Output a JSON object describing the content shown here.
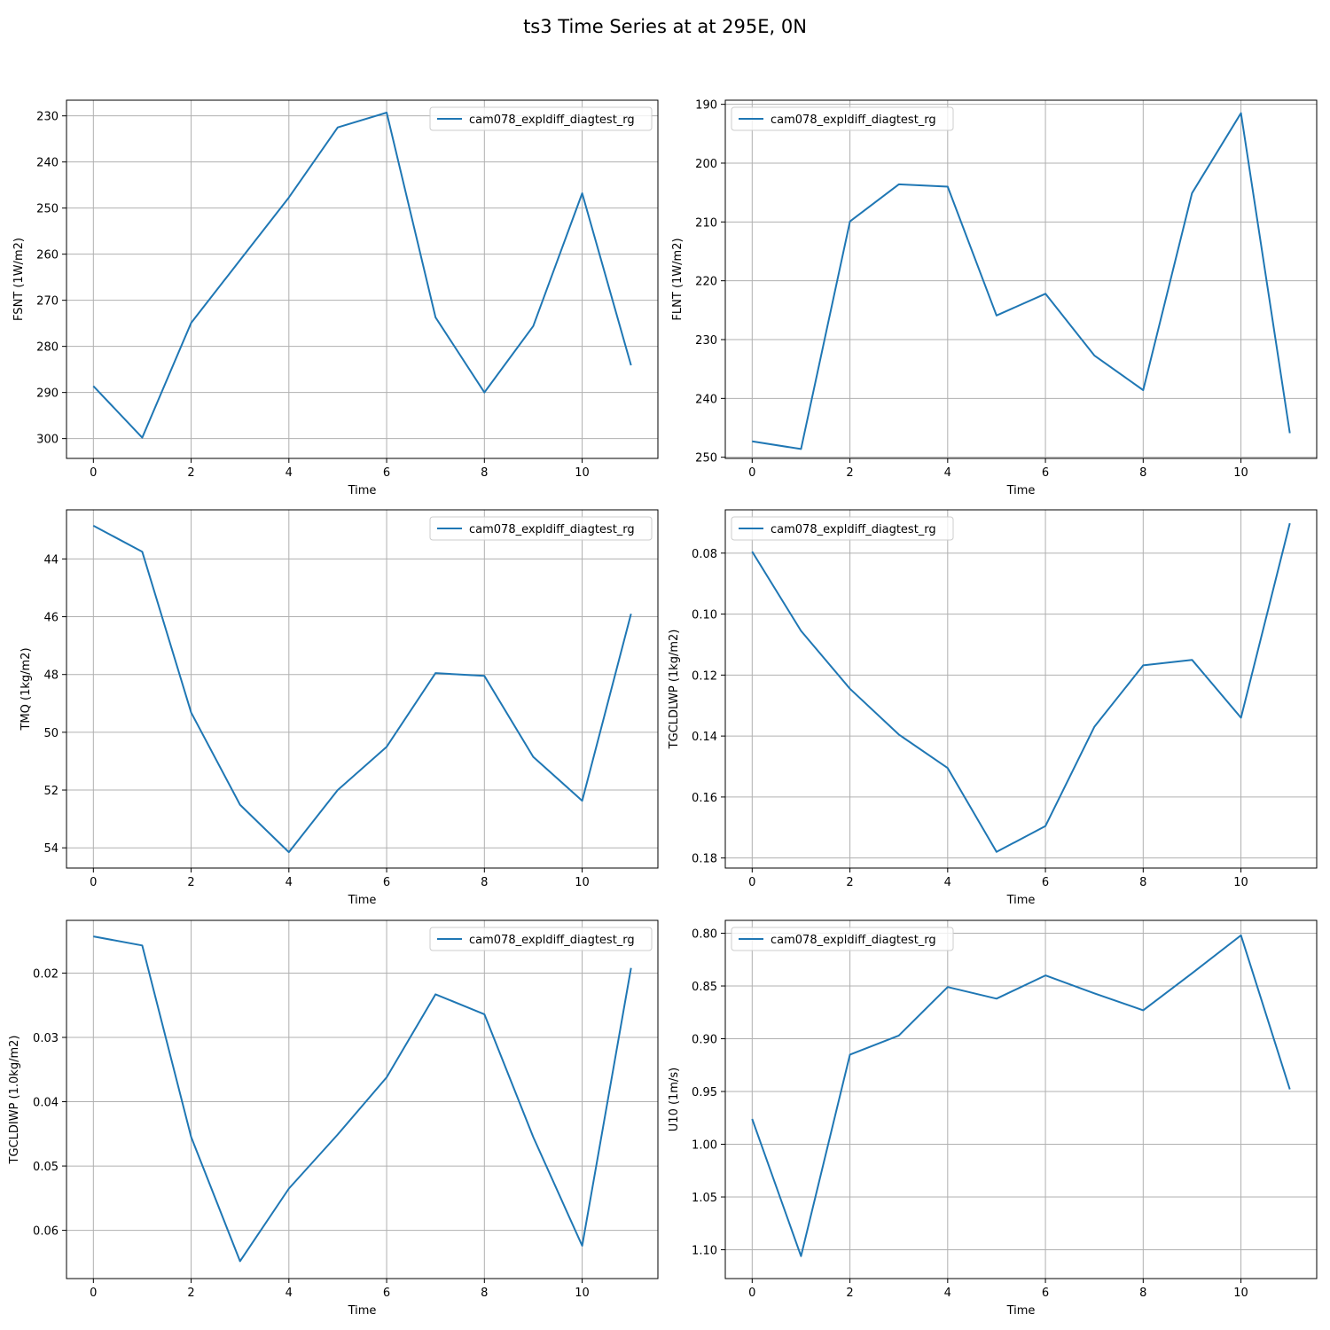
{
  "figure": {
    "title": "ts3 Time Series at at 295E, 0N"
  },
  "style": {
    "series_color": "#1f77b4",
    "grid_color": "#b0b0b0",
    "axis_color": "#000000",
    "background": "#ffffff"
  },
  "chart_data": [
    {
      "type": "line",
      "xlabel": "Time",
      "ylabel": "FSNT (1W/m2)",
      "y_inverted": true,
      "grid": true,
      "legend_position": "top-right",
      "xlim": [
        -0.55,
        11.55
      ],
      "ylim": [
        304.3,
        226.6
      ],
      "xticks": [
        0,
        2,
        4,
        6,
        8,
        10
      ],
      "yticks": [
        230,
        240,
        250,
        260,
        270,
        280,
        290,
        300
      ],
      "ytick_labels": [
        "230",
        "240",
        "250",
        "260",
        "270",
        "280",
        "290",
        "300"
      ],
      "series": [
        {
          "name": "cam078_expldiff_diagtest_rg",
          "x": [
            0,
            1,
            2,
            3,
            4,
            5,
            6,
            7,
            8,
            9,
            10,
            11
          ],
          "y": [
            288.6,
            299.8,
            274.9,
            261.3,
            247.7,
            232.5,
            229.3,
            273.7,
            290.0,
            275.6,
            246.8,
            284.1
          ]
        }
      ]
    },
    {
      "type": "line",
      "xlabel": "Time",
      "ylabel": "FLNT (1W/m2)",
      "y_inverted": true,
      "grid": true,
      "legend_position": "top-left",
      "xlim": [
        -0.55,
        11.55
      ],
      "ylim": [
        250.2,
        189.3
      ],
      "xticks": [
        0,
        2,
        4,
        6,
        8,
        10
      ],
      "yticks": [
        190,
        200,
        210,
        220,
        230,
        240,
        250
      ],
      "ytick_labels": [
        "190",
        "200",
        "210",
        "220",
        "230",
        "240",
        "250"
      ],
      "series": [
        {
          "name": "cam078_expldiff_diagtest_rg",
          "x": [
            0,
            1,
            2,
            3,
            4,
            5,
            6,
            7,
            8,
            9,
            10,
            11
          ],
          "y": [
            247.3,
            248.6,
            209.9,
            203.6,
            204.0,
            225.9,
            222.2,
            232.7,
            238.6,
            205.1,
            191.5,
            245.9
          ]
        }
      ]
    },
    {
      "type": "line",
      "xlabel": "Time",
      "ylabel": "TMQ (1kg/m2)",
      "y_inverted": true,
      "grid": true,
      "legend_position": "top-right",
      "xlim": [
        -0.55,
        11.55
      ],
      "ylim": [
        54.7,
        42.3
      ],
      "xticks": [
        0,
        2,
        4,
        6,
        8,
        10
      ],
      "yticks": [
        44,
        46,
        48,
        50,
        52,
        54
      ],
      "ytick_labels": [
        "44",
        "46",
        "48",
        "50",
        "52",
        "54"
      ],
      "series": [
        {
          "name": "cam078_expldiff_diagtest_rg",
          "x": [
            0,
            1,
            2,
            3,
            4,
            5,
            6,
            7,
            8,
            9,
            10,
            11
          ],
          "y": [
            42.85,
            43.75,
            49.32,
            52.51,
            54.15,
            52.0,
            50.5,
            47.95,
            48.05,
            50.85,
            52.37,
            45.9
          ]
        }
      ]
    },
    {
      "type": "line",
      "xlabel": "Time",
      "ylabel": "TGCLDLWP (1kg/m2)",
      "y_inverted": true,
      "grid": true,
      "legend_position": "top-left",
      "xlim": [
        -0.55,
        11.55
      ],
      "ylim": [
        0.1833,
        0.0658
      ],
      "xticks": [
        0,
        2,
        4,
        6,
        8,
        10
      ],
      "yticks": [
        0.08,
        0.1,
        0.12,
        0.14,
        0.16,
        0.18
      ],
      "ytick_labels": [
        "0.08",
        "0.10",
        "0.12",
        "0.14",
        "0.16",
        "0.18"
      ],
      "series": [
        {
          "name": "cam078_expldiff_diagtest_rg",
          "x": [
            0,
            1,
            2,
            3,
            4,
            5,
            6,
            7,
            8,
            9,
            10,
            11
          ],
          "y": [
            0.0795,
            0.1055,
            0.1245,
            0.1395,
            0.1505,
            0.178,
            0.1695,
            0.137,
            0.1168,
            0.115,
            0.134,
            0.0702
          ]
        }
      ]
    },
    {
      "type": "line",
      "xlabel": "Time",
      "ylabel": "TGCLDIWP (1.0kg/m2)",
      "y_inverted": true,
      "grid": true,
      "legend_position": "top-right",
      "xlim": [
        -0.55,
        11.55
      ],
      "ylim": [
        0.0675,
        0.0118
      ],
      "xticks": [
        0,
        2,
        4,
        6,
        8,
        10
      ],
      "yticks": [
        0.02,
        0.03,
        0.04,
        0.05,
        0.06
      ],
      "ytick_labels": [
        "0.02",
        "0.03",
        "0.04",
        "0.05",
        "0.06"
      ],
      "series": [
        {
          "name": "cam078_expldiff_diagtest_rg",
          "x": [
            0,
            1,
            2,
            3,
            4,
            5,
            6,
            7,
            8,
            9,
            10,
            11
          ],
          "y": [
            0.0143,
            0.0157,
            0.0455,
            0.0648,
            0.0535,
            0.0451,
            0.0362,
            0.0233,
            0.0264,
            0.0455,
            0.0624,
            0.0192
          ]
        }
      ]
    },
    {
      "type": "line",
      "xlabel": "Time",
      "ylabel": "U10 (1m/s)",
      "y_inverted": true,
      "grid": true,
      "legend_position": "top-left",
      "xlim": [
        -0.55,
        11.55
      ],
      "ylim": [
        1.1273,
        0.7878
      ],
      "xticks": [
        0,
        2,
        4,
        6,
        8,
        10
      ],
      "yticks": [
        0.8,
        0.85,
        0.9,
        0.95,
        1.0,
        1.05,
        1.1
      ],
      "ytick_labels": [
        "0.80",
        "0.85",
        "0.90",
        "0.95",
        "1.00",
        "1.05",
        "1.10"
      ],
      "series": [
        {
          "name": "cam078_expldiff_diagtest_rg",
          "x": [
            0,
            1,
            2,
            3,
            4,
            5,
            6,
            7,
            8,
            9,
            10,
            11
          ],
          "y": [
            0.976,
            1.106,
            0.915,
            0.897,
            0.851,
            0.862,
            0.84,
            0.857,
            0.873,
            0.838,
            0.802,
            0.948
          ]
        }
      ]
    }
  ]
}
